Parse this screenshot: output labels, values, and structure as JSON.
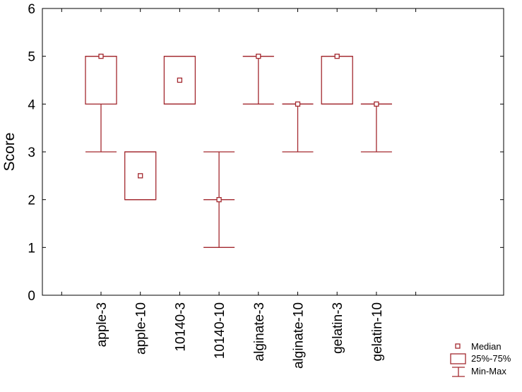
{
  "chart_data": {
    "type": "box",
    "ylabel": "Score",
    "xlabel": "",
    "title": "",
    "ylim": [
      0,
      6
    ],
    "yticks": [
      0,
      1,
      2,
      3,
      4,
      5,
      6
    ],
    "categories": [
      "apple-3",
      "apple-10",
      "10140-3",
      "10140-10",
      "alginate-3",
      "alginate-10",
      "gelatin-3",
      "gelatin-10"
    ],
    "median": [
      5,
      2.5,
      4.5,
      2,
      5,
      4,
      5,
      4
    ],
    "q1": [
      4,
      2,
      4,
      2,
      5,
      4,
      4,
      4
    ],
    "q3": [
      5,
      3,
      5,
      2,
      5,
      4,
      5,
      4
    ],
    "min": [
      3,
      2,
      4,
      1,
      4,
      3,
      4,
      3
    ],
    "max": [
      5,
      3,
      5,
      3,
      5,
      4,
      5,
      4
    ],
    "grid": false,
    "legend": {
      "position": "bottom-right",
      "entries": [
        "Median",
        "25%-75%",
        "Min-Max"
      ]
    },
    "color": "#a3292f"
  }
}
